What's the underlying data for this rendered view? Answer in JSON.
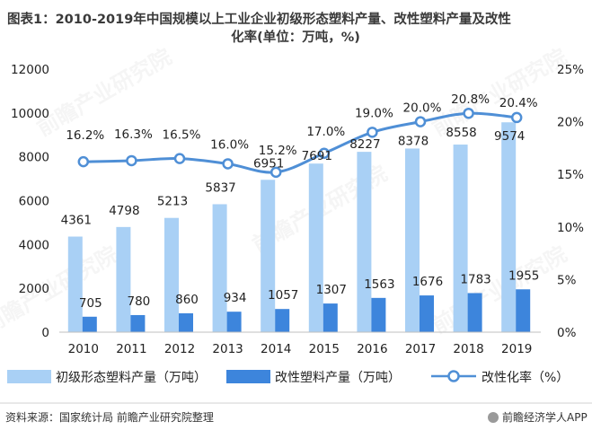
{
  "title_line1": "图表1：2010-2019年中国规模以上工业企业初级形态塑料产量、改性塑料产量及改性",
  "title_line2": "化率(单位：万吨，%)",
  "source": "资料来源：国家统计局 前瞻产业研究院整理",
  "brand": "前瞻经济学人APP",
  "watermark": "前瞻产业研究院",
  "colors": {
    "primary_bar": "#a9d0f5",
    "modified_bar": "#3d85dc",
    "rate_line": "#4f8fd6"
  },
  "chart_data": {
    "type": "bar",
    "categories": [
      "2010",
      "2011",
      "2012",
      "2013",
      "2014",
      "2015",
      "2016",
      "2017",
      "2018",
      "2019"
    ],
    "series": [
      {
        "name": "初级形态塑料产量（万吨）",
        "type": "bar",
        "axis": "left",
        "values": [
          4361,
          4798,
          5213,
          5837,
          6951,
          7691,
          8227,
          8378,
          8558,
          9574
        ],
        "labels": [
          "4361",
          "4798",
          "5213",
          "5837",
          "6951",
          "7691",
          "8227",
          "8378",
          "8558",
          "9574"
        ]
      },
      {
        "name": "改性塑料产量（万吨）",
        "type": "bar",
        "axis": "left",
        "values": [
          705,
          780,
          860,
          934,
          1057,
          1307,
          1563,
          1676,
          1783,
          1955
        ],
        "labels": [
          "705",
          "780",
          "860",
          "934",
          "1057",
          "1307",
          "1563",
          "1676",
          "1783",
          "1955"
        ]
      },
      {
        "name": "改性化率（%）",
        "type": "line",
        "axis": "right",
        "values": [
          16.2,
          16.3,
          16.5,
          16.0,
          15.2,
          17.0,
          19.0,
          20.0,
          20.8,
          20.4
        ],
        "labels": [
          "16.2%",
          "16.3%",
          "16.5%",
          "16.0%",
          "15.2%",
          "17.0%",
          "19.0%",
          "20.0%",
          "20.8%",
          "20.4%"
        ]
      }
    ],
    "y_left": {
      "min": 0,
      "max": 12000,
      "ticks": [
        "0",
        "2000",
        "4000",
        "6000",
        "8000",
        "10000",
        "12000"
      ]
    },
    "y_right": {
      "min": 0,
      "max": 25,
      "ticks": [
        "0%",
        "5%",
        "10%",
        "15%",
        "20%",
        "25%"
      ]
    },
    "legend_position": "bottom",
    "grid": false
  }
}
